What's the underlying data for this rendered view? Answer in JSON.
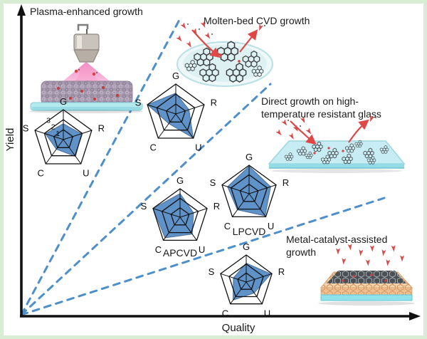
{
  "figure": {
    "y_axis_label": "Yield",
    "x_axis_label": "Quality"
  },
  "annotations": {
    "plasma": "Plasma-enhanced growth",
    "molten": "Molten-bed CVD growth",
    "glass": "Direct growth on high-temperature resistant glass",
    "metal": "Metal-catalyst-assisted growth"
  },
  "colors": {
    "frame_border": "#d8edd4",
    "axis": "#111111",
    "dashed_line": "#4d8fcb",
    "radar_fill": "#5e92c8",
    "text": "#1a1a1a"
  },
  "chart_data": [
    {
      "type": "radar",
      "method": "Plasma-enhanced growth",
      "axes": [
        "G",
        "R",
        "U",
        "C",
        "S"
      ],
      "values": [
        1.6,
        1.9,
        2.1,
        1.2,
        1.9
      ],
      "scale_max": 3,
      "rings": 3,
      "ring_tick_labels": [
        "3",
        "2",
        "1"
      ],
      "legend_position": "below plasma illustration"
    },
    {
      "type": "radar",
      "method": "Molten-bed CVD growth",
      "axes": [
        "G",
        "R",
        "U",
        "C",
        "S"
      ],
      "values": [
        2.1,
        1.4,
        3.0,
        1.2,
        3.0
      ],
      "scale_max": 3,
      "rings": 3
    },
    {
      "type": "radar",
      "label": "APCVD",
      "axes": [
        "G",
        "R",
        "U",
        "C",
        "S"
      ],
      "values": [
        2.5,
        1.5,
        2.2,
        2.7,
        3.0
      ],
      "scale_max": 3,
      "rings": 3
    },
    {
      "type": "radar",
      "label": "LPCVD",
      "axes": [
        "G",
        "R",
        "U",
        "C",
        "S"
      ],
      "values": [
        2.9,
        2.4,
        2.9,
        2.1,
        2.4
      ],
      "scale_max": 3,
      "rings": 3
    },
    {
      "type": "radar",
      "method": "Metal-catalyst-assisted growth",
      "axes": [
        "G",
        "R",
        "U",
        "C",
        "S"
      ],
      "values": [
        2.1,
        2.9,
        1.5,
        2.5,
        1.5
      ],
      "scale_max": 3,
      "rings": 3
    }
  ]
}
